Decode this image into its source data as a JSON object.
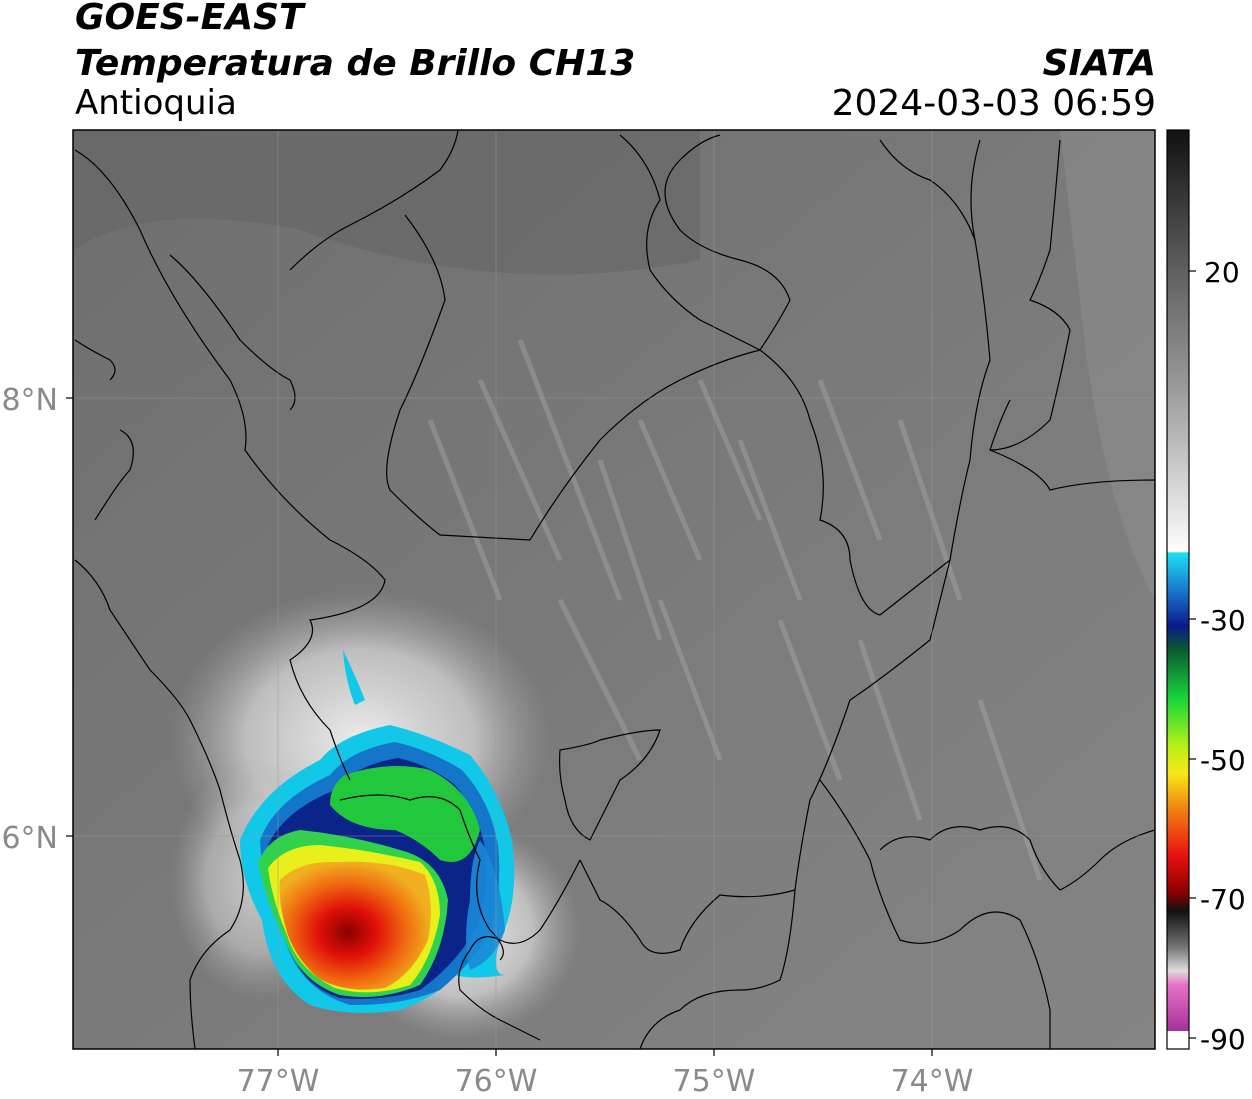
{
  "header": {
    "satellite": "GOES-EAST",
    "product": "Temperatura de Brillo CH13",
    "region": "Antioquia",
    "agency": "SIATA",
    "datetime": "2024-03-03 06:59"
  },
  "map": {
    "lat_ticks": [
      {
        "label": "8°N",
        "value": 8
      },
      {
        "label": "6°N",
        "value": 6
      }
    ],
    "lon_ticks": [
      {
        "label": "77°W",
        "value": -77
      },
      {
        "label": "76°W",
        "value": -76
      },
      {
        "label": "75°W",
        "value": -75
      },
      {
        "label": "74°W",
        "value": -74
      }
    ],
    "extent": {
      "lon": [
        -77.95,
        -72.98
      ],
      "lat": [
        5.0,
        9.23
      ]
    },
    "storm_center": {
      "lon": -76.75,
      "lat": 5.65
    }
  },
  "colorbar": {
    "ticks": [
      "20",
      "-30",
      "-50",
      "-70",
      "-90"
    ],
    "range": [
      -90,
      40
    ]
  },
  "colors": {
    "background_gray": "#7b7b7b",
    "tick_label": "#8a8a8a",
    "storm_cyan": "#12c8e8",
    "storm_blue": "#0a2a8a",
    "storm_green": "#2fd24a",
    "storm_yellow": "#e8ef1a",
    "storm_red": "#e8200a"
  }
}
